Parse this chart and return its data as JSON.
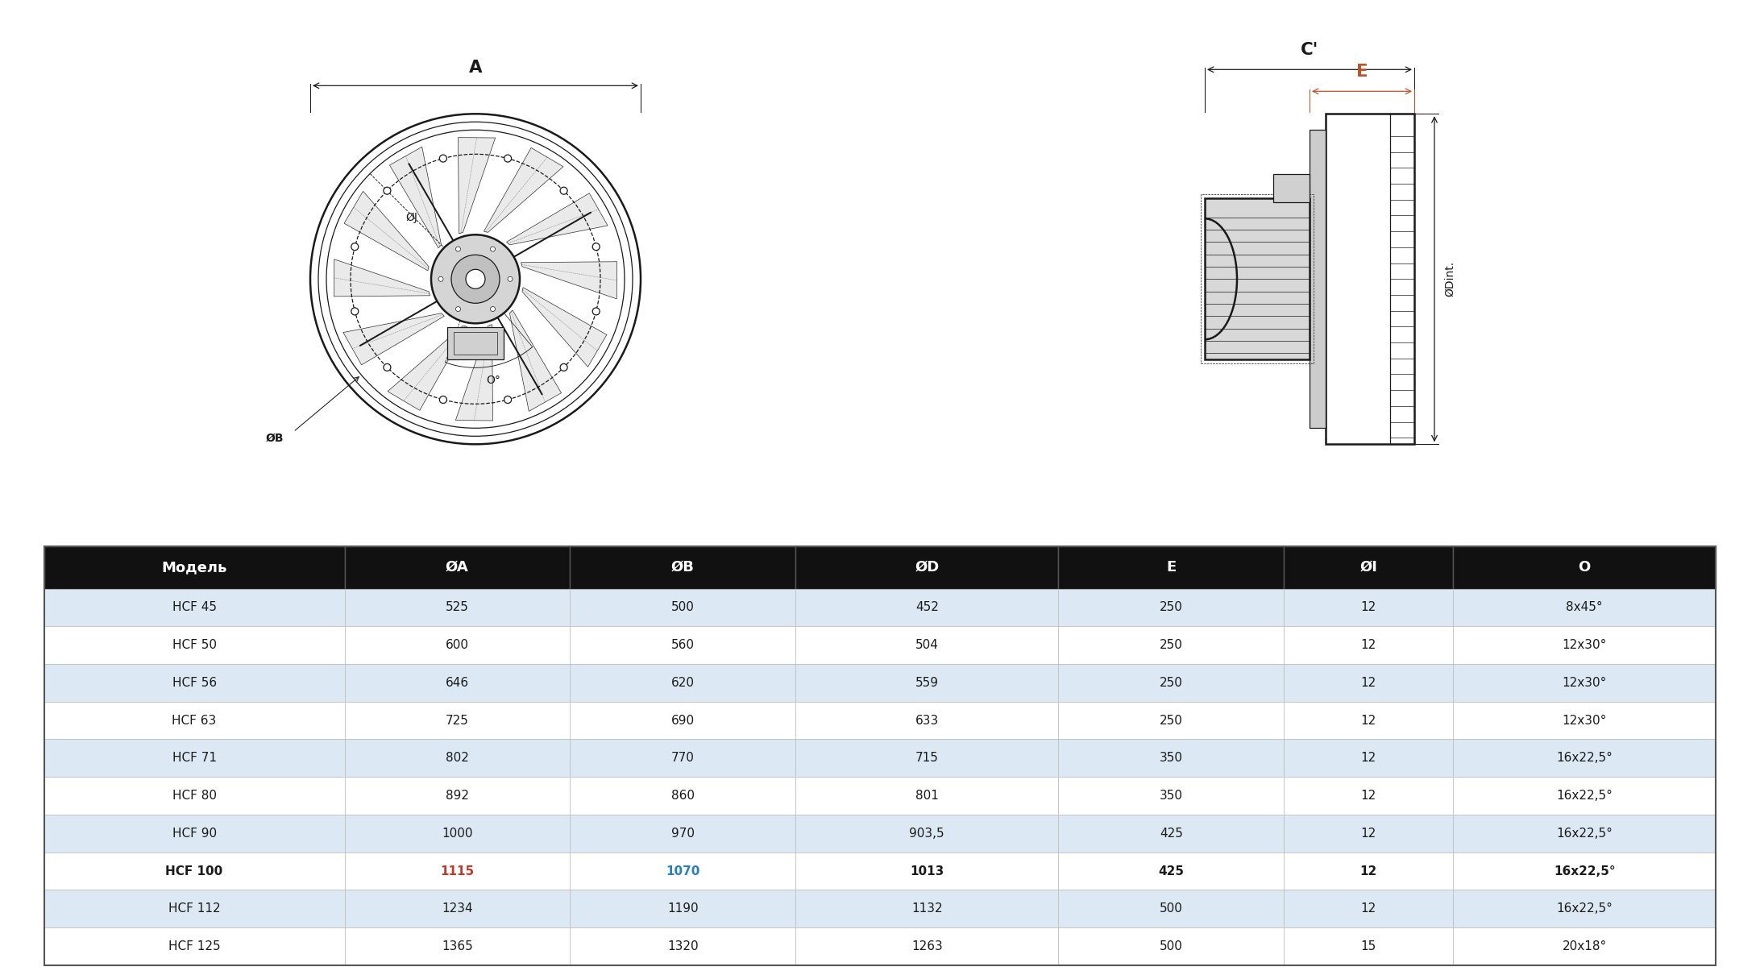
{
  "table_headers": [
    "Модель",
    "ØA",
    "ØB",
    "ØD",
    "E",
    "ØI",
    "O"
  ],
  "table_rows": [
    [
      "HCF 45",
      "525",
      "500",
      "452",
      "250",
      "12",
      "8x45°"
    ],
    [
      "HCF 50",
      "600",
      "560",
      "504",
      "250",
      "12",
      "12x30°"
    ],
    [
      "HCF 56",
      "646",
      "620",
      "559",
      "250",
      "12",
      "12x30°"
    ],
    [
      "HCF 63",
      "725",
      "690",
      "633",
      "250",
      "12",
      "12x30°"
    ],
    [
      "HCF 71",
      "802",
      "770",
      "715",
      "350",
      "12",
      "16x22,5°"
    ],
    [
      "HCF 80",
      "892",
      "860",
      "801",
      "350",
      "12",
      "16x22,5°"
    ],
    [
      "HCF 90",
      "1000",
      "970",
      "903,5",
      "425",
      "12",
      "16x22,5°"
    ],
    [
      "HCF 100",
      "1115",
      "1070",
      "1013",
      "425",
      "12",
      "16x22,5°"
    ],
    [
      "HCF 112",
      "1234",
      "1190",
      "1132",
      "500",
      "12",
      "16x22,5°"
    ],
    [
      "HCF 125",
      "1365",
      "1320",
      "1263",
      "500",
      "15",
      "20x18°"
    ]
  ],
  "header_bg": "#111111",
  "header_fg": "#ffffff",
  "row_bg_odd": "#dce9f5",
  "row_bg_even": "#ffffff",
  "row_fg": "#1a1a1a",
  "highlight_row_idx": 7,
  "highlight_col_A_color": "#c0392b",
  "highlight_col_B_color": "#2980b9",
  "col_weights": [
    1.6,
    1.2,
    1.2,
    1.4,
    1.2,
    0.9,
    1.4
  ],
  "fig_width": 21.84,
  "fig_height": 12.1,
  "bg_color": "#ffffff",
  "line_color": "#1a1a1a",
  "orange_color": "#c0522a",
  "dim_fontsize": 11,
  "header_fontsize": 13,
  "cell_fontsize": 11
}
